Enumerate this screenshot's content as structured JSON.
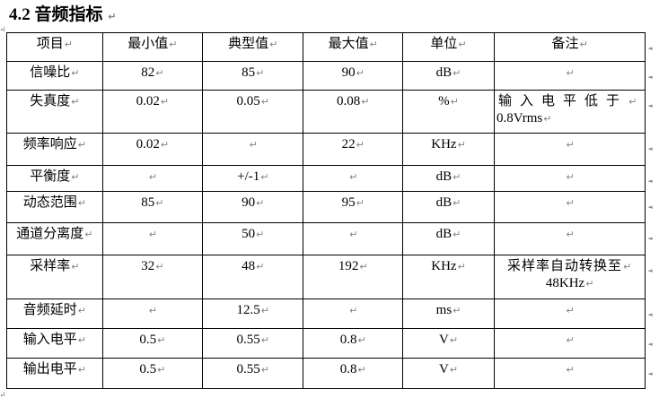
{
  "heading": {
    "title": "4.2 音频指标"
  },
  "marks": {
    "paragraph": "↵",
    "row_end": "◄"
  },
  "table": {
    "headers": {
      "item": "项目",
      "min": "最小值",
      "typ": "典型值",
      "max": "最大值",
      "unit": "单位",
      "note": "备注"
    },
    "rows": [
      {
        "item": "信噪比",
        "min": "82",
        "typ": "85",
        "max": "90",
        "unit": "dB",
        "note": ""
      },
      {
        "item": "失真度",
        "min": "0.02",
        "typ": "0.05",
        "max": "0.08",
        "unit": "%",
        "note1": "输入电平低于",
        "note2": "0.8Vrms"
      },
      {
        "item": "频率响应",
        "min": "0.02",
        "typ": "",
        "max": "22",
        "unit": "KHz",
        "note": ""
      },
      {
        "item": "平衡度",
        "min": "",
        "typ": "+/-1",
        "max": "",
        "unit": "dB",
        "note": ""
      },
      {
        "item": "动态范围",
        "min": "85",
        "typ": "90",
        "max": "95",
        "unit": "dB",
        "note": ""
      },
      {
        "item": "通道分离度",
        "min": "",
        "typ": "50",
        "max": "",
        "unit": "dB",
        "note": ""
      },
      {
        "item": "采样率",
        "min": "32",
        "typ": "48",
        "max": "192",
        "unit": "KHz",
        "note1": "采样率自动转换至",
        "note2": "48KHz"
      },
      {
        "item": "音频延时",
        "min": "",
        "typ": "12.5",
        "max": "",
        "unit": "ms",
        "note": ""
      },
      {
        "item": "输入电平",
        "min": "0.5",
        "typ": "0.55",
        "max": "0.8",
        "unit": "V",
        "note": ""
      },
      {
        "item": "输出电平",
        "min": "0.5",
        "typ": "0.55",
        "max": "0.8",
        "unit": "V",
        "note": ""
      }
    ]
  }
}
